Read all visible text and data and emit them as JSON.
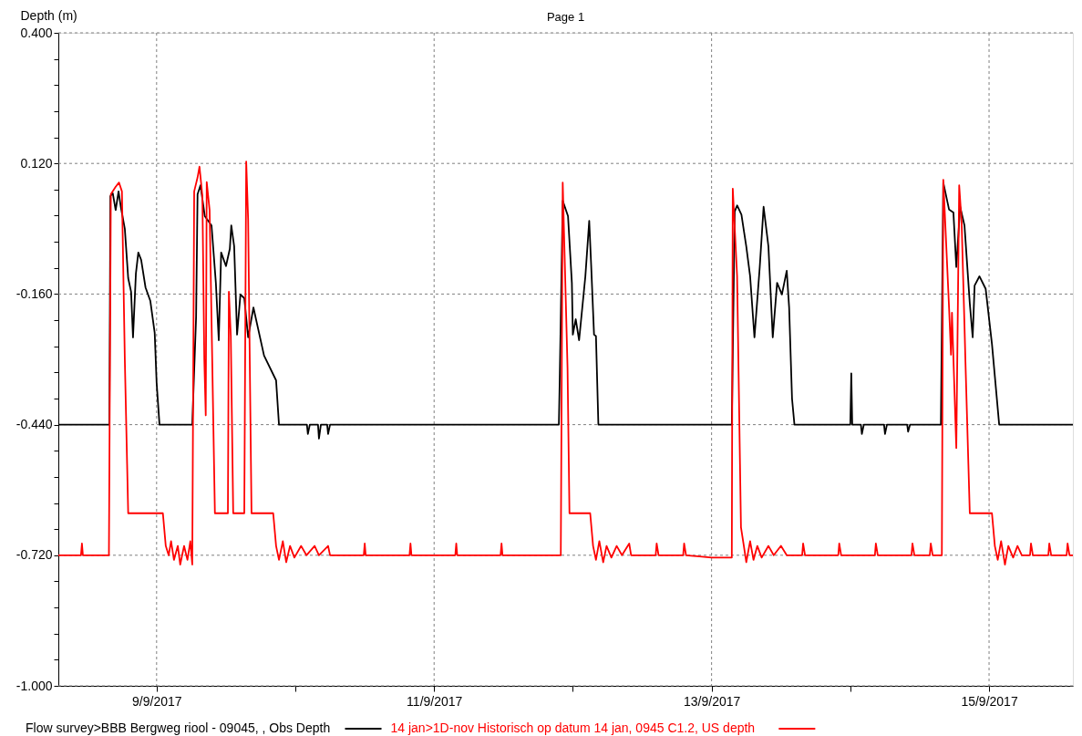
{
  "chart_data": {
    "type": "line",
    "title": "Page 1",
    "ylabel": "Depth (m)",
    "xlim": [
      "2017-09-08T07:00",
      "2017-09-15T14:30"
    ],
    "xticks": [
      {
        "value": "2017-09-09T00:00",
        "label": "9/9/2017"
      },
      {
        "value": "2017-09-10T00:00",
        "label": null
      },
      {
        "value": "2017-09-11T00:00",
        "label": "11/9/2017"
      },
      {
        "value": "2017-09-12T00:00",
        "label": null
      },
      {
        "value": "2017-09-13T00:00",
        "label": "13/9/2017"
      },
      {
        "value": "2017-09-14T00:00",
        "label": null
      },
      {
        "value": "2017-09-15T00:00",
        "label": "15/9/2017"
      }
    ],
    "ylim": [
      -1.0,
      0.4
    ],
    "yticks": [
      {
        "value": 0.4,
        "label": "0.400"
      },
      {
        "value": 0.344,
        "label": null
      },
      {
        "value": 0.288,
        "label": null
      },
      {
        "value": 0.232,
        "label": null
      },
      {
        "value": 0.176,
        "label": null
      },
      {
        "value": 0.12,
        "label": "0.120"
      },
      {
        "value": 0.064,
        "label": null
      },
      {
        "value": 0.008,
        "label": null
      },
      {
        "value": -0.048,
        "label": null
      },
      {
        "value": -0.104,
        "label": null
      },
      {
        "value": -0.16,
        "label": "-0.160"
      },
      {
        "value": -0.216,
        "label": null
      },
      {
        "value": -0.272,
        "label": null
      },
      {
        "value": -0.328,
        "label": null
      },
      {
        "value": -0.384,
        "label": null
      },
      {
        "value": -0.44,
        "label": "-0.440"
      },
      {
        "value": -0.496,
        "label": null
      },
      {
        "value": -0.552,
        "label": null
      },
      {
        "value": -0.608,
        "label": null
      },
      {
        "value": -0.664,
        "label": null
      },
      {
        "value": -0.72,
        "label": "-0.720"
      },
      {
        "value": -0.776,
        "label": null
      },
      {
        "value": -0.832,
        "label": null
      },
      {
        "value": -0.888,
        "label": null
      },
      {
        "value": -0.944,
        "label": null
      },
      {
        "value": -1.0,
        "label": "-1.000"
      }
    ],
    "grid": true,
    "legend": "bottom",
    "marker": "none",
    "line_style": "solid",
    "series": [
      {
        "name": "Flow survey>BBB Bergweg riool - 09045, , Obs Depth",
        "color": "#000000",
        "x": [
          "2017-09-08T07:00",
          "2017-09-08T15:50",
          "2017-09-08T16:00",
          "2017-09-08T16:25",
          "2017-09-08T16:55",
          "2017-09-08T17:25",
          "2017-09-08T17:50",
          "2017-09-08T18:30",
          "2017-09-08T19:05",
          "2017-09-08T19:35",
          "2017-09-08T19:55",
          "2017-09-08T20:25",
          "2017-09-08T20:50",
          "2017-09-08T21:20",
          "2017-09-08T22:05",
          "2017-09-08T22:55",
          "2017-09-08T23:40",
          "2017-09-09T00:00",
          "2017-09-09T00:30",
          "2017-09-09T06:10",
          "2017-09-09T06:50",
          "2017-09-09T07:05",
          "2017-09-09T07:35",
          "2017-09-09T08:20",
          "2017-09-09T09:30",
          "2017-09-09T10:15",
          "2017-09-09T10:45",
          "2017-09-09T11:10",
          "2017-09-09T12:00",
          "2017-09-09T12:40",
          "2017-09-09T12:55",
          "2017-09-09T13:25",
          "2017-09-09T13:55",
          "2017-09-09T14:30",
          "2017-09-09T15:10",
          "2017-09-09T15:50",
          "2017-09-09T16:45",
          "2017-09-09T18:35",
          "2017-09-09T20:40",
          "2017-09-09T21:10",
          "2017-09-10T02:00",
          "2017-09-10T02:10",
          "2017-09-10T02:30",
          "2017-09-10T03:55",
          "2017-09-10T04:05",
          "2017-09-10T04:25",
          "2017-09-10T05:30",
          "2017-09-10T05:40",
          "2017-09-10T06:00",
          "2017-09-11T21:35",
          "2017-09-11T21:45",
          "2017-09-11T22:15",
          "2017-09-11T23:10",
          "2017-09-11T23:50",
          "2017-09-12T00:00",
          "2017-09-12T00:30",
          "2017-09-12T01:05",
          "2017-09-12T02:10",
          "2017-09-12T02:50",
          "2017-09-12T03:10",
          "2017-09-12T03:40",
          "2017-09-12T04:00",
          "2017-09-12T04:25",
          "2017-09-13T03:30",
          "2017-09-13T04:00",
          "2017-09-13T04:25",
          "2017-09-13T05:10",
          "2017-09-13T06:00",
          "2017-09-13T06:40",
          "2017-09-13T07:25",
          "2017-09-13T08:20",
          "2017-09-13T09:00",
          "2017-09-13T09:50",
          "2017-09-13T10:35",
          "2017-09-13T11:20",
          "2017-09-13T12:10",
          "2017-09-13T13:00",
          "2017-09-13T13:25",
          "2017-09-13T13:55",
          "2017-09-13T14:20",
          "2017-09-14T00:00",
          "2017-09-14T00:10",
          "2017-09-14T00:20",
          "2017-09-14T01:50",
          "2017-09-14T02:00",
          "2017-09-14T02:20",
          "2017-09-14T05:50",
          "2017-09-14T06:00",
          "2017-09-14T06:20",
          "2017-09-14T09:50",
          "2017-09-14T10:00",
          "2017-09-14T10:20",
          "2017-09-14T15:40",
          "2017-09-14T16:05",
          "2017-09-14T17:05",
          "2017-09-14T17:50",
          "2017-09-14T18:20",
          "2017-09-14T19:00",
          "2017-09-14T19:45",
          "2017-09-14T20:40",
          "2017-09-14T21:10",
          "2017-09-14T21:30",
          "2017-09-14T22:20",
          "2017-09-14T23:25",
          "2017-09-15T00:30",
          "2017-09-15T01:45",
          "2017-09-15T14:30"
        ],
        "values": [
          -0.44,
          -0.44,
          0.05,
          0.056,
          0.02,
          0.06,
          0.025,
          -0.02,
          -0.126,
          -0.155,
          -0.253,
          -0.116,
          -0.071,
          -0.087,
          -0.146,
          -0.175,
          -0.243,
          -0.35,
          -0.44,
          -0.44,
          -0.208,
          0.054,
          0.073,
          0.007,
          -0.013,
          -0.136,
          -0.259,
          -0.071,
          -0.1,
          -0.063,
          -0.013,
          -0.058,
          -0.247,
          -0.161,
          -0.169,
          -0.253,
          -0.189,
          -0.292,
          -0.345,
          -0.44,
          -0.44,
          -0.46,
          -0.44,
          -0.44,
          -0.47,
          -0.44,
          -0.44,
          -0.46,
          -0.44,
          -0.44,
          -0.33,
          0.04,
          0.007,
          -0.136,
          -0.247,
          -0.214,
          -0.259,
          -0.122,
          -0.003,
          -0.097,
          -0.247,
          -0.25,
          -0.44,
          -0.44,
          0.017,
          0.03,
          0.01,
          -0.058,
          -0.122,
          -0.253,
          -0.102,
          0.027,
          -0.058,
          -0.253,
          -0.136,
          -0.161,
          -0.11,
          -0.189,
          -0.384,
          -0.44,
          -0.44,
          -0.33,
          -0.44,
          -0.44,
          -0.46,
          -0.44,
          -0.44,
          -0.46,
          -0.44,
          -0.44,
          -0.455,
          -0.44,
          -0.44,
          0.079,
          0.021,
          0.015,
          -0.102,
          0.027,
          -0.013,
          -0.18,
          -0.253,
          -0.142,
          -0.122,
          -0.149,
          -0.267,
          -0.44,
          -0.44
        ]
      },
      {
        "name": "14 jan>1D-nov Historisch op datum 14 jan, 0945 C1.2, US depth",
        "color": "#ff0000",
        "x": [
          "2017-09-08T07:00",
          "2017-09-08T10:55",
          "2017-09-08T11:05",
          "2017-09-08T11:15",
          "2017-09-08T15:45",
          "2017-09-08T16:05",
          "2017-09-08T16:55",
          "2017-09-08T17:30",
          "2017-09-08T18:00",
          "2017-09-08T18:30",
          "2017-09-08T19:05",
          "2017-09-09T01:05",
          "2017-09-09T01:35",
          "2017-09-09T02:05",
          "2017-09-09T02:30",
          "2017-09-09T03:00",
          "2017-09-09T03:40",
          "2017-09-09T04:05",
          "2017-09-09T04:45",
          "2017-09-09T05:20",
          "2017-09-09T05:50",
          "2017-09-09T06:10",
          "2017-09-09T06:30",
          "2017-09-09T07:05",
          "2017-09-09T07:25",
          "2017-09-09T07:55",
          "2017-09-09T08:15",
          "2017-09-09T08:30",
          "2017-09-09T08:40",
          "2017-09-09T09:10",
          "2017-09-09T10:05",
          "2017-09-09T12:20",
          "2017-09-09T12:30",
          "2017-09-09T12:50",
          "2017-09-09T13:15",
          "2017-09-09T15:10",
          "2017-09-09T15:30",
          "2017-09-09T15:50",
          "2017-09-09T16:25",
          "2017-09-09T20:10",
          "2017-09-09T20:40",
          "2017-09-09T21:10",
          "2017-09-09T21:50",
          "2017-09-09T22:25",
          "2017-09-09T23:05",
          "2017-09-09T23:50",
          "2017-09-10T01:00",
          "2017-09-10T01:55",
          "2017-09-10T03:20",
          "2017-09-10T04:05",
          "2017-09-10T05:40",
          "2017-09-10T06:00",
          "2017-09-10T11:50",
          "2017-09-10T12:00",
          "2017-09-10T12:10",
          "2017-09-10T19:45",
          "2017-09-10T19:55",
          "2017-09-10T20:05",
          "2017-09-11T03:40",
          "2017-09-11T03:50",
          "2017-09-11T04:00",
          "2017-09-11T11:30",
          "2017-09-11T11:40",
          "2017-09-11T11:50",
          "2017-09-11T21:55",
          "2017-09-11T22:15",
          "2017-09-11T23:05",
          "2017-09-11T23:25",
          "2017-09-12T03:00",
          "2017-09-12T03:30",
          "2017-09-12T04:00",
          "2017-09-12T04:35",
          "2017-09-12T05:15",
          "2017-09-12T05:50",
          "2017-09-12T06:40",
          "2017-09-12T07:35",
          "2017-09-12T08:30",
          "2017-09-12T09:45",
          "2017-09-12T10:05",
          "2017-09-12T14:20",
          "2017-09-12T14:30",
          "2017-09-12T14:50",
          "2017-09-12T19:05",
          "2017-09-12T19:15",
          "2017-09-12T19:35",
          "2017-09-13T00:00",
          "2017-09-13T03:30",
          "2017-09-13T03:40",
          "2017-09-13T04:25",
          "2017-09-13T05:05",
          "2017-09-13T05:35",
          "2017-09-13T06:00",
          "2017-09-13T06:40",
          "2017-09-13T07:15",
          "2017-09-13T07:55",
          "2017-09-13T08:40",
          "2017-09-13T09:50",
          "2017-09-13T10:45",
          "2017-09-13T12:00",
          "2017-09-13T13:00",
          "2017-09-13T15:40",
          "2017-09-13T15:50",
          "2017-09-13T16:10",
          "2017-09-13T21:55",
          "2017-09-13T22:05",
          "2017-09-13T22:25",
          "2017-09-14T04:15",
          "2017-09-14T04:25",
          "2017-09-14T04:45",
          "2017-09-14T10:35",
          "2017-09-14T10:45",
          "2017-09-14T11:05",
          "2017-09-14T13:45",
          "2017-09-14T13:55",
          "2017-09-14T14:15",
          "2017-09-14T15:50",
          "2017-09-14T16:05",
          "2017-09-14T17:05",
          "2017-09-14T17:25",
          "2017-09-14T17:35",
          "2017-09-14T18:20",
          "2017-09-14T18:50",
          "2017-09-14T19:15",
          "2017-09-14T19:45",
          "2017-09-14T19:55",
          "2017-09-14T20:40",
          "2017-09-15T00:30",
          "2017-09-15T01:00",
          "2017-09-15T01:30",
          "2017-09-15T02:05",
          "2017-09-15T02:45",
          "2017-09-15T03:20",
          "2017-09-15T04:10",
          "2017-09-15T04:55",
          "2017-09-15T05:40",
          "2017-09-15T07:05",
          "2017-09-15T07:15",
          "2017-09-15T07:35",
          "2017-09-15T10:15",
          "2017-09-15T10:25",
          "2017-09-15T10:45",
          "2017-09-15T13:25",
          "2017-09-15T13:35",
          "2017-09-15T13:55",
          "2017-09-15T14:30"
        ],
        "values": [
          -0.72,
          -0.72,
          -0.695,
          -0.72,
          -0.72,
          0.054,
          0.07,
          0.079,
          0.06,
          -0.3,
          -0.63,
          -0.63,
          -0.7,
          -0.72,
          -0.69,
          -0.73,
          -0.7,
          -0.74,
          -0.7,
          -0.73,
          -0.69,
          -0.74,
          0.06,
          0.09,
          0.113,
          0.05,
          -0.3,
          -0.42,
          0.08,
          0.02,
          -0.63,
          -0.63,
          -0.155,
          -0.25,
          -0.63,
          -0.63,
          0.124,
          0.0,
          -0.63,
          -0.63,
          -0.7,
          -0.73,
          -0.69,
          -0.735,
          -0.7,
          -0.725,
          -0.7,
          -0.72,
          -0.7,
          -0.72,
          -0.7,
          -0.72,
          -0.72,
          -0.695,
          -0.72,
          -0.72,
          -0.695,
          -0.72,
          -0.72,
          -0.695,
          -0.72,
          -0.72,
          -0.695,
          -0.72,
          -0.72,
          0.079,
          -0.318,
          -0.63,
          -0.63,
          -0.7,
          -0.73,
          -0.69,
          -0.735,
          -0.7,
          -0.725,
          -0.7,
          -0.72,
          -0.695,
          -0.72,
          -0.72,
          -0.695,
          -0.72,
          -0.72,
          -0.695,
          -0.72,
          -0.725,
          -0.725,
          0.066,
          -0.122,
          -0.66,
          -0.7,
          -0.735,
          -0.69,
          -0.73,
          -0.7,
          -0.725,
          -0.7,
          -0.72,
          -0.7,
          -0.72,
          -0.72,
          -0.695,
          -0.72,
          -0.72,
          -0.695,
          -0.72,
          -0.72,
          -0.695,
          -0.72,
          -0.72,
          -0.695,
          -0.72,
          -0.72,
          -0.695,
          -0.72,
          -0.72,
          0.085,
          -0.19,
          -0.29,
          -0.2,
          -0.49,
          0.073,
          -0.005,
          -0.228,
          -0.306,
          -0.63,
          -0.63,
          -0.7,
          -0.73,
          -0.69,
          -0.74,
          -0.7,
          -0.725,
          -0.7,
          -0.72,
          -0.72,
          -0.695,
          -0.72,
          -0.72,
          -0.695,
          -0.72,
          -0.72,
          -0.695,
          -0.72,
          -0.72
        ]
      }
    ]
  }
}
